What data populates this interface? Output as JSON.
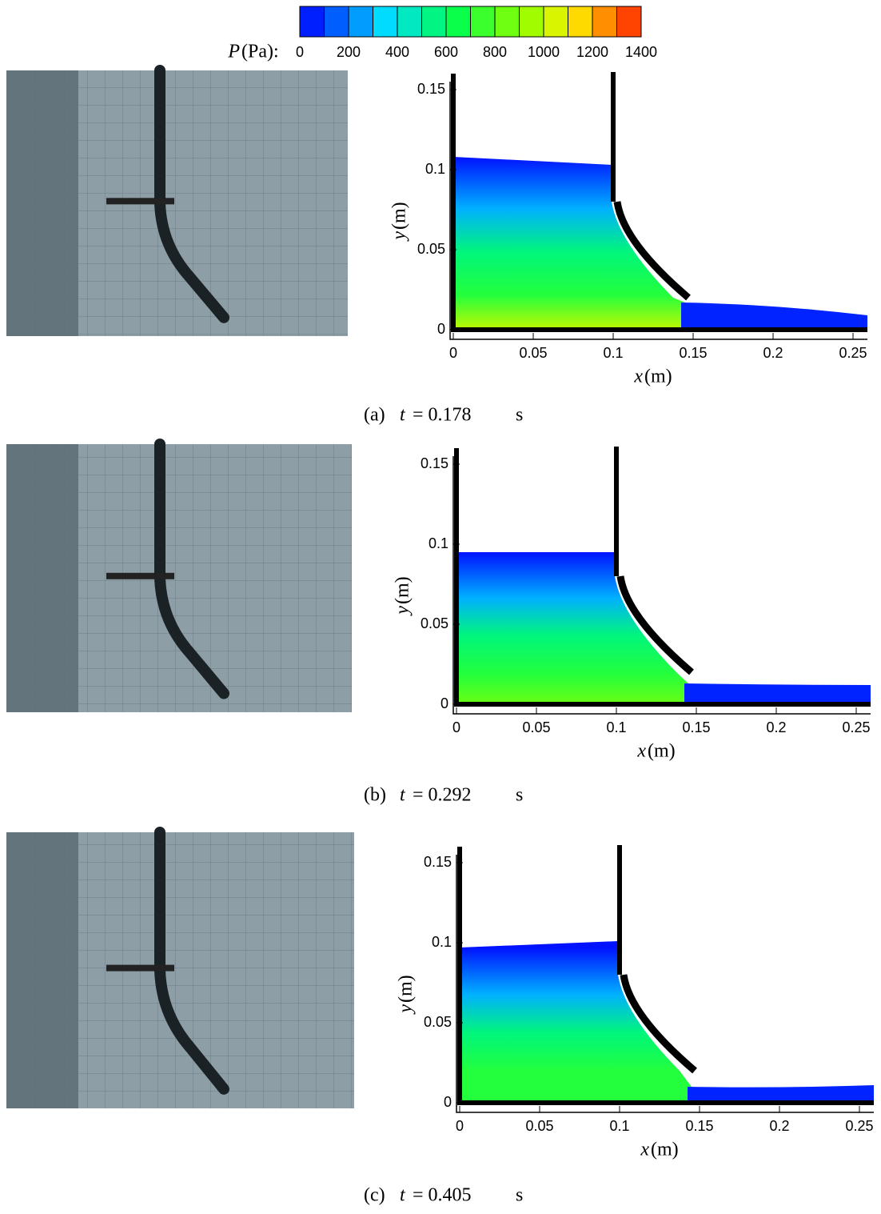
{
  "colorbar": {
    "var": "P",
    "unit": "(Pa):",
    "lim": [
      0,
      1400
    ],
    "ticks": [
      0,
      200,
      400,
      600,
      800,
      1000,
      1200,
      1400
    ]
  },
  "panels": [
    {
      "caption": {
        "label": "(a)",
        "var": "t",
        "eq": "= 0.178",
        "unit": "s"
      },
      "plot": {
        "xvar": "x",
        "xunit": "(m)",
        "yvar": "y",
        "yunit": "(m)",
        "xlim": [
          -0.002,
          0.259
        ],
        "ylim": [
          -0.006,
          0.155
        ],
        "xticks": [
          0,
          0.05,
          0.1,
          0.15,
          0.2,
          0.25
        ],
        "yticks": [
          0,
          0.05,
          0.1,
          0.15
        ]
      }
    },
    {
      "caption": {
        "label": "(b)",
        "var": "t",
        "eq": "= 0.292",
        "unit": "s"
      },
      "plot": {
        "xvar": "x",
        "xunit": "(m)",
        "yvar": "y",
        "yunit": "(m)",
        "xlim": [
          -0.002,
          0.259
        ],
        "ylim": [
          -0.006,
          0.155
        ],
        "xticks": [
          0,
          0.05,
          0.1,
          0.15,
          0.2,
          0.25
        ],
        "yticks": [
          0,
          0.05,
          0.1,
          0.15
        ]
      }
    },
    {
      "caption": {
        "label": "(c)",
        "var": "t",
        "eq": "= 0.405",
        "unit": "s"
      },
      "plot": {
        "xvar": "x",
        "xunit": "(m)",
        "yvar": "y",
        "yunit": "(m)",
        "xlim": [
          -0.002,
          0.259
        ],
        "ylim": [
          -0.006,
          0.155
        ],
        "xticks": [
          0,
          0.05,
          0.1,
          0.15,
          0.2,
          0.25
        ],
        "yticks": [
          0,
          0.05,
          0.1,
          0.15
        ]
      }
    }
  ]
}
